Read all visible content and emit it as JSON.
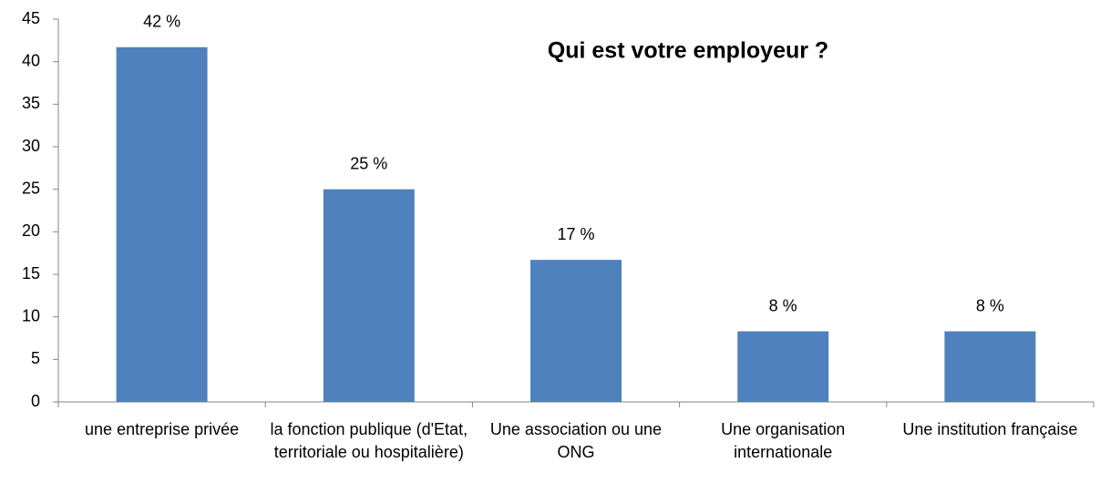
{
  "chart_data": {
    "type": "bar",
    "title": "Qui est votre employeur ?",
    "categories": [
      "une entreprise privée",
      "la fonction publique (d'Etat, territoriale ou hospitalière)",
      "Une association ou une ONG",
      "Une organisation internationale",
      "Une institution française"
    ],
    "values": [
      41.7,
      25,
      16.7,
      8.3,
      8.3
    ],
    "value_labels": [
      "42 %",
      "25 %",
      "17 %",
      "8 %",
      "8 %"
    ],
    "color": "#4f81bd",
    "ylim": [
      0,
      45
    ],
    "yticks": [
      0,
      5,
      10,
      15,
      20,
      25,
      30,
      35,
      40,
      45
    ],
    "grid": false
  }
}
